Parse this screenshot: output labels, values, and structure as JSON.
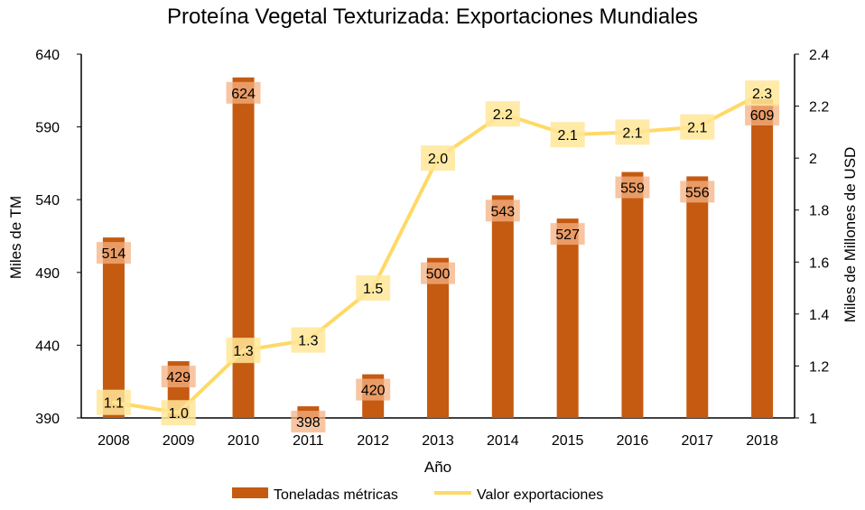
{
  "chart_data": {
    "type": "bar+line",
    "title": "Proteína Vegetal Texturizada: Exportaciones Mundiales",
    "xlabel": "Año",
    "ylabel_left": "Miles de TM",
    "ylabel_right": "Miles de Millones de USD",
    "categories": [
      "2008",
      "2009",
      "2010",
      "2011",
      "2012",
      "2013",
      "2014",
      "2015",
      "2016",
      "2017",
      "2018"
    ],
    "ylim_left": [
      390,
      640
    ],
    "yticks_left": [
      390,
      440,
      490,
      540,
      590,
      640
    ],
    "ylim_right": [
      1,
      2.4
    ],
    "yticks_right": [
      "1",
      "1.2",
      "1.4",
      "1.6",
      "1.8",
      "2",
      "2.2",
      "2.4"
    ],
    "grid": false,
    "legend_position": "bottom",
    "series": [
      {
        "name": "Toneladas métricas",
        "type": "bar",
        "axis": "left",
        "color": "#C55A11",
        "values": [
          514,
          429,
          624,
          398,
          420,
          500,
          543,
          527,
          559,
          556,
          609
        ],
        "labels": [
          "514",
          "429",
          "624",
          "398",
          "420",
          "500",
          "543",
          "527",
          "559",
          "556",
          "609"
        ]
      },
      {
        "name": "Valor exportaciones",
        "type": "line",
        "axis": "right",
        "color": "#FFD966",
        "values": [
          1.06,
          1.02,
          1.26,
          1.3,
          1.5,
          2.0,
          2.17,
          2.09,
          2.1,
          2.12,
          2.25
        ],
        "labels": [
          "1.1",
          "1.0",
          "1.3",
          "1.3",
          "1.5",
          "2.0",
          "2.2",
          "2.1",
          "2.1",
          "2.1",
          "2.3"
        ]
      }
    ]
  }
}
